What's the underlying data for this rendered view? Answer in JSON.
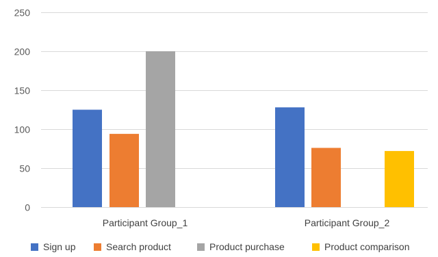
{
  "chart_data": {
    "type": "bar",
    "title": "",
    "xlabel": "",
    "ylabel": "",
    "categories": [
      "Participant Group_1",
      "Participant Group_2"
    ],
    "series": [
      {
        "name": "Sign up",
        "values": [
          125,
          128
        ],
        "color": "#4472C4"
      },
      {
        "name": "Search product",
        "values": [
          94,
          76
        ],
        "color": "#ED7D31"
      },
      {
        "name": "Product purchase",
        "values": [
          200,
          null
        ],
        "color": "#A5A5A5"
      },
      {
        "name": "Product comparison",
        "values": [
          null,
          72
        ],
        "color": "#FFC000"
      }
    ],
    "ylim": [
      0,
      250
    ],
    "yticks": [
      0,
      50,
      100,
      150,
      200,
      250
    ],
    "grid": true,
    "legend_position": "bottom"
  }
}
